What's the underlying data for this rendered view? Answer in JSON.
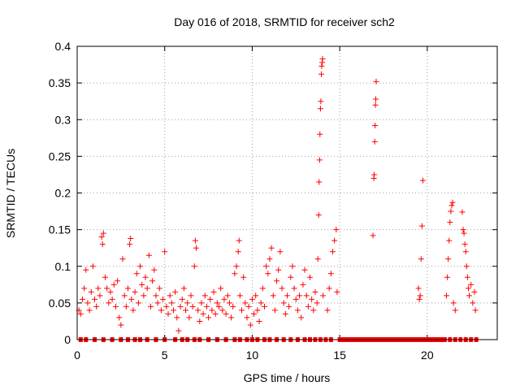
{
  "chart_data": {
    "type": "scatter",
    "title": "Day 016 of 2018, SRMTID for receiver sch2",
    "xlabel": "GPS time / hours",
    "ylabel": "SRMTID / TECUs",
    "xlim": [
      0,
      24
    ],
    "ylim": [
      0,
      0.4
    ],
    "xticks": [
      0,
      5,
      10,
      15,
      20
    ],
    "xtick_labels": [
      "0",
      "5",
      "10",
      "15",
      "20"
    ],
    "yticks": [
      0,
      0.05,
      0.1,
      0.15,
      0.2,
      0.25,
      0.3,
      0.35,
      0.4
    ],
    "ytick_labels": [
      "0",
      "0.05",
      "0.1",
      "0.15",
      "0.2",
      "0.25",
      "0.3",
      "0.35",
      "0.4"
    ],
    "grid": true,
    "marker": "+",
    "color": "#ff0000",
    "series": [
      {
        "name": "sch2",
        "points": [
          [
            0.1,
            0.04
          ],
          [
            0.2,
            0.035
          ],
          [
            0.3,
            0.055
          ],
          [
            0.4,
            0.07
          ],
          [
            0.5,
            0.095
          ],
          [
            0.6,
            0.05
          ],
          [
            0.7,
            0.04
          ],
          [
            0.8,
            0.065
          ],
          [
            0.9,
            0.1
          ],
          [
            1.0,
            0.055
          ],
          [
            1.1,
            0.045
          ],
          [
            1.2,
            0.07
          ],
          [
            1.3,
            0.06
          ],
          [
            1.4,
            0.14
          ],
          [
            1.45,
            0.13
          ],
          [
            1.5,
            0.145
          ],
          [
            1.6,
            0.085
          ],
          [
            1.7,
            0.07
          ],
          [
            1.8,
            0.05
          ],
          [
            1.9,
            0.065
          ],
          [
            2.0,
            0.055
          ],
          [
            2.1,
            0.075
          ],
          [
            2.2,
            0.045
          ],
          [
            2.3,
            0.08
          ],
          [
            2.4,
            0.03
          ],
          [
            2.5,
            0.02
          ],
          [
            2.6,
            0.11
          ],
          [
            2.7,
            0.06
          ],
          [
            2.8,
            0.045
          ],
          [
            2.9,
            0.07
          ],
          [
            3.0,
            0.13
          ],
          [
            3.05,
            0.138
          ],
          [
            3.1,
            0.055
          ],
          [
            3.2,
            0.04
          ],
          [
            3.3,
            0.065
          ],
          [
            3.4,
            0.09
          ],
          [
            3.5,
            0.05
          ],
          [
            3.6,
            0.1
          ],
          [
            3.7,
            0.075
          ],
          [
            3.8,
            0.06
          ],
          [
            3.9,
            0.085
          ],
          [
            4.0,
            0.07
          ],
          [
            4.1,
            0.115
          ],
          [
            4.2,
            0.045
          ],
          [
            4.3,
            0.08
          ],
          [
            4.4,
            0.095
          ],
          [
            4.5,
            0.06
          ],
          [
            4.6,
            0.05
          ],
          [
            4.7,
            0.07
          ],
          [
            4.8,
            0.04
          ],
          [
            4.9,
            0.055
          ],
          [
            5.0,
            0.12
          ],
          [
            5.1,
            0.045
          ],
          [
            5.2,
            0.035
          ],
          [
            5.3,
            0.06
          ],
          [
            5.4,
            0.05
          ],
          [
            5.5,
            0.04
          ],
          [
            5.6,
            0.065
          ],
          [
            5.7,
            0.03
          ],
          [
            5.8,
            0.012
          ],
          [
            5.9,
            0.045
          ],
          [
            6.0,
            0.055
          ],
          [
            6.1,
            0.07
          ],
          [
            6.2,
            0.04
          ],
          [
            6.3,
            0.05
          ],
          [
            6.4,
            0.03
          ],
          [
            6.5,
            0.06
          ],
          [
            6.6,
            0.045
          ],
          [
            6.7,
            0.1
          ],
          [
            6.75,
            0.135
          ],
          [
            6.8,
            0.125
          ],
          [
            6.9,
            0.04
          ],
          [
            7.0,
            0.025
          ],
          [
            7.1,
            0.05
          ],
          [
            7.2,
            0.035
          ],
          [
            7.3,
            0.06
          ],
          [
            7.4,
            0.045
          ],
          [
            7.5,
            0.03
          ],
          [
            7.6,
            0.055
          ],
          [
            7.7,
            0.04
          ],
          [
            7.8,
            0.065
          ],
          [
            7.9,
            0.035
          ],
          [
            8.0,
            0.05
          ],
          [
            8.1,
            0.045
          ],
          [
            8.2,
            0.07
          ],
          [
            8.3,
            0.04
          ],
          [
            8.4,
            0.055
          ],
          [
            8.5,
            0.035
          ],
          [
            8.6,
            0.06
          ],
          [
            8.7,
            0.05
          ],
          [
            8.8,
            0.03
          ],
          [
            8.9,
            0.045
          ],
          [
            9.0,
            0.09
          ],
          [
            9.1,
            0.1
          ],
          [
            9.2,
            0.12
          ],
          [
            9.25,
            0.135
          ],
          [
            9.3,
            0.06
          ],
          [
            9.4,
            0.04
          ],
          [
            9.5,
            0.085
          ],
          [
            9.6,
            0.05
          ],
          [
            9.7,
            0.03
          ],
          [
            9.8,
            0.045
          ],
          [
            9.9,
            0.02
          ],
          [
            10.0,
            0.055
          ],
          [
            10.1,
            0.035
          ],
          [
            10.2,
            0.06
          ],
          [
            10.3,
            0.04
          ],
          [
            10.4,
            0.025
          ],
          [
            10.5,
            0.05
          ],
          [
            10.6,
            0.07
          ],
          [
            10.7,
            0.045
          ],
          [
            10.8,
            0.1
          ],
          [
            10.9,
            0.09
          ],
          [
            11.0,
            0.11
          ],
          [
            11.1,
            0.125
          ],
          [
            11.2,
            0.06
          ],
          [
            11.3,
            0.04
          ],
          [
            11.4,
            0.08
          ],
          [
            11.5,
            0.095
          ],
          [
            11.6,
            0.12
          ],
          [
            11.7,
            0.07
          ],
          [
            11.8,
            0.05
          ],
          [
            11.9,
            0.035
          ],
          [
            12.0,
            0.06
          ],
          [
            12.1,
            0.045
          ],
          [
            12.2,
            0.085
          ],
          [
            12.3,
            0.1
          ],
          [
            12.4,
            0.07
          ],
          [
            12.5,
            0.055
          ],
          [
            12.6,
            0.04
          ],
          [
            12.7,
            0.06
          ],
          [
            12.8,
            0.03
          ],
          [
            12.9,
            0.075
          ],
          [
            13.0,
            0.095
          ],
          [
            13.1,
            0.06
          ],
          [
            13.2,
            0.045
          ],
          [
            13.3,
            0.085
          ],
          [
            13.4,
            0.055
          ],
          [
            13.5,
            0.04
          ],
          [
            13.6,
            0.065
          ],
          [
            13.7,
            0.05
          ],
          [
            13.75,
            0.11
          ],
          [
            13.8,
            0.17
          ],
          [
            13.82,
            0.215
          ],
          [
            13.85,
            0.245
          ],
          [
            13.87,
            0.28
          ],
          [
            13.9,
            0.315
          ],
          [
            13.92,
            0.325
          ],
          [
            13.95,
            0.362
          ],
          [
            13.97,
            0.373
          ],
          [
            14.0,
            0.378
          ],
          [
            14.02,
            0.383
          ],
          [
            14.05,
            0.06
          ],
          [
            14.3,
            0.04
          ],
          [
            14.4,
            0.07
          ],
          [
            14.5,
            0.09
          ],
          [
            14.6,
            0.12
          ],
          [
            14.7,
            0.135
          ],
          [
            14.8,
            0.15
          ],
          [
            14.85,
            0.065
          ],
          [
            16.9,
            0.142
          ],
          [
            16.95,
            0.22
          ],
          [
            16.97,
            0.225
          ],
          [
            17.0,
            0.27
          ],
          [
            17.02,
            0.292
          ],
          [
            17.04,
            0.32
          ],
          [
            17.06,
            0.328
          ],
          [
            17.08,
            0.352
          ],
          [
            19.5,
            0.07
          ],
          [
            19.55,
            0.055
          ],
          [
            19.6,
            0.06
          ],
          [
            19.65,
            0.11
          ],
          [
            19.7,
            0.155
          ],
          [
            19.75,
            0.217
          ],
          [
            21.1,
            0.06
          ],
          [
            21.15,
            0.085
          ],
          [
            21.2,
            0.11
          ],
          [
            21.25,
            0.135
          ],
          [
            21.3,
            0.16
          ],
          [
            21.35,
            0.175
          ],
          [
            21.4,
            0.183
          ],
          [
            21.45,
            0.187
          ],
          [
            21.5,
            0.05
          ],
          [
            21.6,
            0.04
          ],
          [
            22.0,
            0.174
          ],
          [
            22.05,
            0.15
          ],
          [
            22.1,
            0.145
          ],
          [
            22.15,
            0.13
          ],
          [
            22.2,
            0.12
          ],
          [
            22.25,
            0.1
          ],
          [
            22.3,
            0.085
          ],
          [
            22.35,
            0.07
          ],
          [
            22.4,
            0.06
          ],
          [
            22.5,
            0.075
          ],
          [
            22.6,
            0.05
          ],
          [
            22.7,
            0.065
          ],
          [
            22.75,
            0.04
          ]
        ],
        "zero_times": [
          0.2,
          0.5,
          1.0,
          1.5,
          2.0,
          2.5,
          2.9,
          3.3,
          3.6,
          4.0,
          4.5,
          5.0,
          5.6,
          6.0,
          6.3,
          6.7,
          7.0,
          7.5,
          8.0,
          8.5,
          9.0,
          9.3,
          9.7,
          10.0,
          10.3,
          10.7,
          11.0,
          11.4,
          11.8,
          12.2,
          12.6,
          13.0,
          13.3,
          13.6,
          13.9,
          14.2,
          14.5,
          15.0,
          15.2,
          15.4,
          15.6,
          15.8,
          16.0,
          16.2,
          16.4,
          16.6,
          16.8,
          17.0,
          17.2,
          17.4,
          17.6,
          17.8,
          18.0,
          18.2,
          18.4,
          18.6,
          18.8,
          19.0,
          19.2,
          19.4,
          19.6,
          19.8,
          20.0,
          20.2,
          20.4,
          20.6,
          20.8,
          21.0,
          21.3,
          21.6,
          21.9,
          22.2,
          22.5,
          22.8
        ]
      }
    ]
  }
}
